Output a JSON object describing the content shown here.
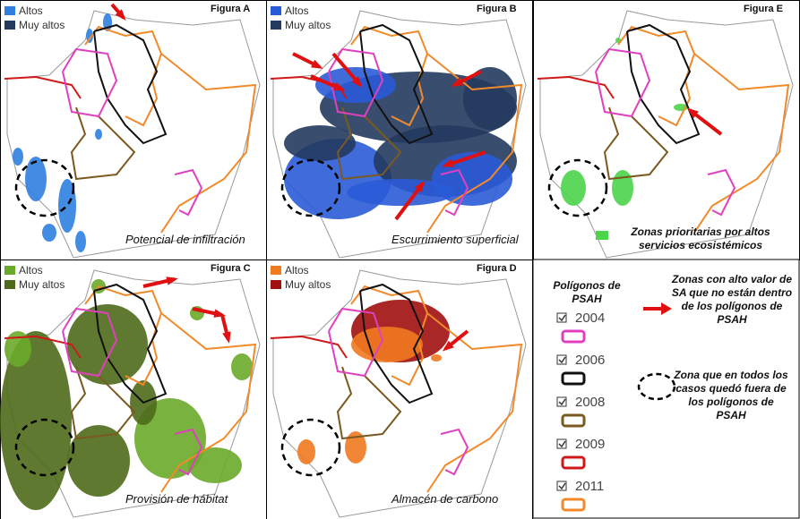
{
  "panels": [
    {
      "title": "Figura A",
      "legend": [
        {
          "label": "Altos",
          "color": "#2f7fe0"
        },
        {
          "label": "Muy altos",
          "color": "#243a5e"
        }
      ],
      "caption": "Potencial de infiltración"
    },
    {
      "title": "Figura B",
      "legend": [
        {
          "label": "Altos",
          "color": "#2a5bd7"
        },
        {
          "label": "Muy altos",
          "color": "#243a5e"
        }
      ],
      "caption": "Escurrimiento superficial"
    },
    {
      "title": "Figura E",
      "legend": [],
      "caption": "Zonas prioritarias por altos servicios ecosistémicos",
      "caption_color": "#4cd44a"
    },
    {
      "title": "Figura C",
      "legend": [
        {
          "label": "Altos",
          "color": "#6aaa2a"
        },
        {
          "label": "Muy altos",
          "color": "#4e6b1a"
        }
      ],
      "caption": "Provisión de hábitat"
    },
    {
      "title": "Figura D",
      "legend": [
        {
          "label": "Altos",
          "color": "#f07a20"
        },
        {
          "label": "Muy altos",
          "color": "#a01010"
        }
      ],
      "caption": "Almacén de carbono"
    }
  ],
  "legend_panel": {
    "title": "Polígonos de PSAH",
    "years": [
      {
        "label": "2004",
        "color": "#e040c0"
      },
      {
        "label": "2006",
        "color": "#111111"
      },
      {
        "label": "2008",
        "color": "#7a5a20"
      },
      {
        "label": "2009",
        "color": "#d01818"
      },
      {
        "label": "2011",
        "color": "#f08a2a"
      }
    ],
    "arrow_note": "Zonas con alto valor de SA que no están dentro de los polígonos de PSAH",
    "circle_note": "Zona que en todos los casos quedó fuera de los polígonos de PSAH"
  }
}
